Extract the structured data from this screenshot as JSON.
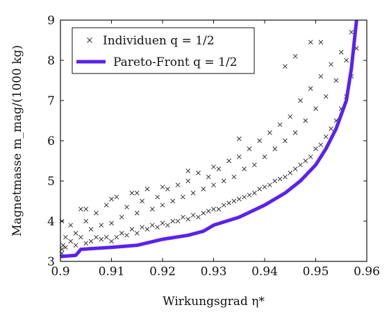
{
  "chart_data": {
    "type": "scatter",
    "xlabel": "Wirkungsgrad η*",
    "ylabel": "Magnetmasse m_mag/(1000 kg)",
    "xlim": [
      0.9,
      0.96
    ],
    "ylim": [
      3,
      9
    ],
    "xticks": [
      0.9,
      0.91,
      0.92,
      0.93,
      0.94,
      0.95,
      0.96
    ],
    "yticks": [
      3,
      4,
      5,
      6,
      7,
      8,
      9
    ],
    "grid": false,
    "legend_position": "top-left",
    "colors": {
      "pareto": "#5a22ee",
      "individuals": "#333333"
    },
    "series": [
      {
        "name": "Individuen q = 1/2",
        "kind": "scatter",
        "marker": "x",
        "points": [
          [
            0.9,
            3.3
          ],
          [
            0.9,
            3.2
          ],
          [
            0.9,
            4.0
          ],
          [
            0.9005,
            3.4
          ],
          [
            0.901,
            3.35
          ],
          [
            0.901,
            3.6
          ],
          [
            0.902,
            3.5
          ],
          [
            0.902,
            3.9
          ],
          [
            0.903,
            3.4
          ],
          [
            0.903,
            3.7
          ],
          [
            0.904,
            4.3
          ],
          [
            0.904,
            3.6
          ],
          [
            0.905,
            3.45
          ],
          [
            0.905,
            4.0
          ],
          [
            0.906,
            3.5
          ],
          [
            0.906,
            3.8
          ],
          [
            0.907,
            3.6
          ],
          [
            0.907,
            4.2
          ],
          [
            0.908,
            3.55
          ],
          [
            0.908,
            3.9
          ],
          [
            0.909,
            3.6
          ],
          [
            0.909,
            4.4
          ],
          [
            0.91,
            3.5
          ],
          [
            0.91,
            3.95
          ],
          [
            0.911,
            3.6
          ],
          [
            0.911,
            4.6
          ],
          [
            0.912,
            3.7
          ],
          [
            0.912,
            4.1
          ],
          [
            0.913,
            3.65
          ],
          [
            0.913,
            4.35
          ],
          [
            0.914,
            3.8
          ],
          [
            0.914,
            4.7
          ],
          [
            0.915,
            3.7
          ],
          [
            0.915,
            4.2
          ],
          [
            0.916,
            3.85
          ],
          [
            0.916,
            4.5
          ],
          [
            0.917,
            3.8
          ],
          [
            0.917,
            4.8
          ],
          [
            0.918,
            3.9
          ],
          [
            0.918,
            4.3
          ],
          [
            0.919,
            3.85
          ],
          [
            0.919,
            4.6
          ],
          [
            0.92,
            3.95
          ],
          [
            0.92,
            4.4
          ],
          [
            0.921,
            3.9
          ],
          [
            0.921,
            4.8
          ],
          [
            0.922,
            4.0
          ],
          [
            0.922,
            4.5
          ],
          [
            0.923,
            4.0
          ],
          [
            0.923,
            4.9
          ],
          [
            0.924,
            4.1
          ],
          [
            0.924,
            4.6
          ],
          [
            0.925,
            4.05
          ],
          [
            0.925,
            5.0
          ],
          [
            0.926,
            4.15
          ],
          [
            0.926,
            4.7
          ],
          [
            0.927,
            4.1
          ],
          [
            0.927,
            5.2
          ],
          [
            0.928,
            4.2
          ],
          [
            0.928,
            4.8
          ],
          [
            0.929,
            4.25
          ],
          [
            0.929,
            5.1
          ],
          [
            0.93,
            4.3
          ],
          [
            0.93,
            4.9
          ],
          [
            0.931,
            4.3
          ],
          [
            0.931,
            5.3
          ],
          [
            0.932,
            4.4
          ],
          [
            0.932,
            5.0
          ],
          [
            0.933,
            4.45
          ],
          [
            0.933,
            5.5
          ],
          [
            0.934,
            4.5
          ],
          [
            0.934,
            5.1
          ],
          [
            0.935,
            4.55
          ],
          [
            0.935,
            5.6
          ],
          [
            0.936,
            4.6
          ],
          [
            0.936,
            5.3
          ],
          [
            0.937,
            4.65
          ],
          [
            0.937,
            5.8
          ],
          [
            0.938,
            4.7
          ],
          [
            0.938,
            5.4
          ],
          [
            0.939,
            4.8
          ],
          [
            0.939,
            6.0
          ],
          [
            0.94,
            4.85
          ],
          [
            0.94,
            5.6
          ],
          [
            0.941,
            4.9
          ],
          [
            0.941,
            6.2
          ],
          [
            0.942,
            5.0
          ],
          [
            0.942,
            5.8
          ],
          [
            0.943,
            5.05
          ],
          [
            0.943,
            6.4
          ],
          [
            0.944,
            5.1
          ],
          [
            0.944,
            6.0
          ],
          [
            0.945,
            5.2
          ],
          [
            0.945,
            6.6
          ],
          [
            0.946,
            5.3
          ],
          [
            0.946,
            6.2
          ],
          [
            0.947,
            5.4
          ],
          [
            0.947,
            7.0
          ],
          [
            0.948,
            5.5
          ],
          [
            0.948,
            6.5
          ],
          [
            0.949,
            5.6
          ],
          [
            0.949,
            7.3
          ],
          [
            0.95,
            5.8
          ],
          [
            0.95,
            6.8
          ],
          [
            0.951,
            5.9
          ],
          [
            0.951,
            7.6
          ],
          [
            0.952,
            6.1
          ],
          [
            0.952,
            7.1
          ],
          [
            0.953,
            6.3
          ],
          [
            0.953,
            7.9
          ],
          [
            0.954,
            6.5
          ],
          [
            0.954,
            7.5
          ],
          [
            0.955,
            6.8
          ],
          [
            0.955,
            8.2
          ],
          [
            0.956,
            7.1
          ],
          [
            0.956,
            8.0
          ],
          [
            0.957,
            7.6
          ],
          [
            0.957,
            8.7
          ],
          [
            0.958,
            8.3
          ],
          [
            0.949,
            8.45
          ],
          [
            0.946,
            8.1
          ],
          [
            0.944,
            7.85
          ],
          [
            0.935,
            6.05
          ],
          [
            0.93,
            5.35
          ],
          [
            0.925,
            5.25
          ],
          [
            0.92,
            4.85
          ],
          [
            0.915,
            4.7
          ],
          [
            0.91,
            4.55
          ],
          [
            0.905,
            4.3
          ],
          [
            0.951,
            8.45
          ]
        ]
      },
      {
        "name": "Pareto-Front q = 1/2",
        "kind": "line",
        "points": [
          [
            0.9,
            3.12
          ],
          [
            0.903,
            3.15
          ],
          [
            0.904,
            3.3
          ],
          [
            0.91,
            3.35
          ],
          [
            0.915,
            3.4
          ],
          [
            0.92,
            3.55
          ],
          [
            0.925,
            3.65
          ],
          [
            0.928,
            3.75
          ],
          [
            0.93,
            3.9
          ],
          [
            0.935,
            4.1
          ],
          [
            0.94,
            4.4
          ],
          [
            0.944,
            4.7
          ],
          [
            0.947,
            5.0
          ],
          [
            0.95,
            5.4
          ],
          [
            0.952,
            5.8
          ],
          [
            0.954,
            6.3
          ],
          [
            0.956,
            7.0
          ],
          [
            0.957,
            7.8
          ],
          [
            0.958,
            9.0
          ]
        ]
      }
    ]
  }
}
